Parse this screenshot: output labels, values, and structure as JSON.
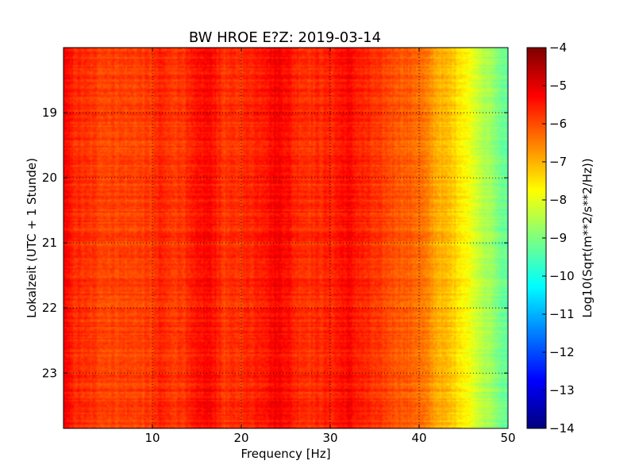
{
  "chart_data": {
    "type": "heatmap",
    "title": "BW HROE E?Z: 2019-03-14",
    "xlabel": "Frequency [Hz]",
    "ylabel": "Lokalzeit (UTC + 1 Stunde)",
    "colorbar_label": "Log10(Sqrt(m**2/s**2/Hz))",
    "colormap": "jet",
    "xlim": [
      0,
      50
    ],
    "ylim": [
      18.0,
      23.85
    ],
    "y_inverted": true,
    "x_ticks": [
      10,
      20,
      30,
      40,
      50
    ],
    "y_ticks": [
      19,
      20,
      21,
      22,
      23
    ],
    "color_range": [
      -14,
      -4
    ],
    "colorbar_ticks": [
      -4,
      -5,
      -6,
      -7,
      -8,
      -9,
      -10,
      -11,
      -12,
      -13,
      -14
    ],
    "grid": true,
    "spectrum_profile": {
      "frequency_hz": [
        0,
        1,
        3,
        5,
        8,
        10,
        11,
        12,
        14,
        16,
        17,
        18,
        20,
        22,
        24,
        25,
        26,
        28,
        30,
        32,
        33,
        35,
        37,
        38,
        40,
        42,
        44,
        45,
        46,
        48,
        50
      ],
      "log10_amplitude": [
        -5.2,
        -5.6,
        -5.8,
        -5.9,
        -5.9,
        -5.85,
        -5.6,
        -5.8,
        -5.7,
        -5.3,
        -5.4,
        -5.8,
        -5.7,
        -5.5,
        -5.2,
        -5.3,
        -5.6,
        -5.7,
        -5.6,
        -5.3,
        -5.5,
        -5.8,
        -6.0,
        -6.1,
        -6.3,
        -6.9,
        -7.3,
        -7.6,
        -8.0,
        -8.7,
        -9.4
      ]
    }
  }
}
